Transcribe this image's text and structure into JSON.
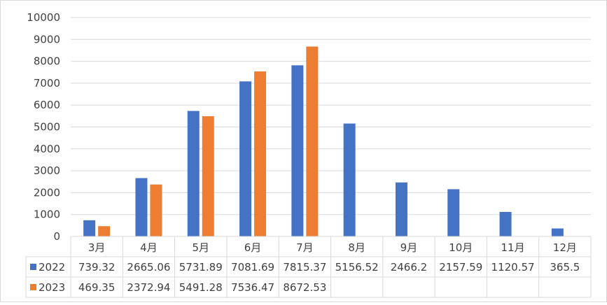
{
  "chart_data": {
    "type": "bar",
    "categories": [
      "3月",
      "4月",
      "5月",
      "6月",
      "7月",
      "8月",
      "9月",
      "10月",
      "11月",
      "12月"
    ],
    "series": [
      {
        "name": "2022",
        "color": "#4472C4",
        "values": [
          739.32,
          2665.06,
          5731.89,
          7081.69,
          7815.37,
          5156.52,
          2466.2,
          2157.59,
          1120.57,
          365.5
        ],
        "labels": [
          "739.32",
          "2665.06",
          "5731.89",
          "7081.69",
          "7815.37",
          "5156.52",
          "2466.2",
          "2157.59",
          "1120.57",
          "365.5"
        ]
      },
      {
        "name": "2023",
        "color": "#ED7D31",
        "values": [
          469.35,
          2372.94,
          5491.28,
          7536.47,
          8672.53,
          null,
          null,
          null,
          null,
          null
        ],
        "labels": [
          "469.35",
          "2372.94",
          "5491.28",
          "7536.47",
          "8672.53",
          "",
          "",
          "",
          "",
          ""
        ]
      }
    ],
    "ylim": [
      0,
      10000
    ],
    "yticks": [
      "0",
      "1000",
      "2000",
      "3000",
      "4000",
      "5000",
      "6000",
      "7000",
      "8000",
      "9000",
      "10000"
    ],
    "grid": true,
    "legend": "data-table"
  }
}
